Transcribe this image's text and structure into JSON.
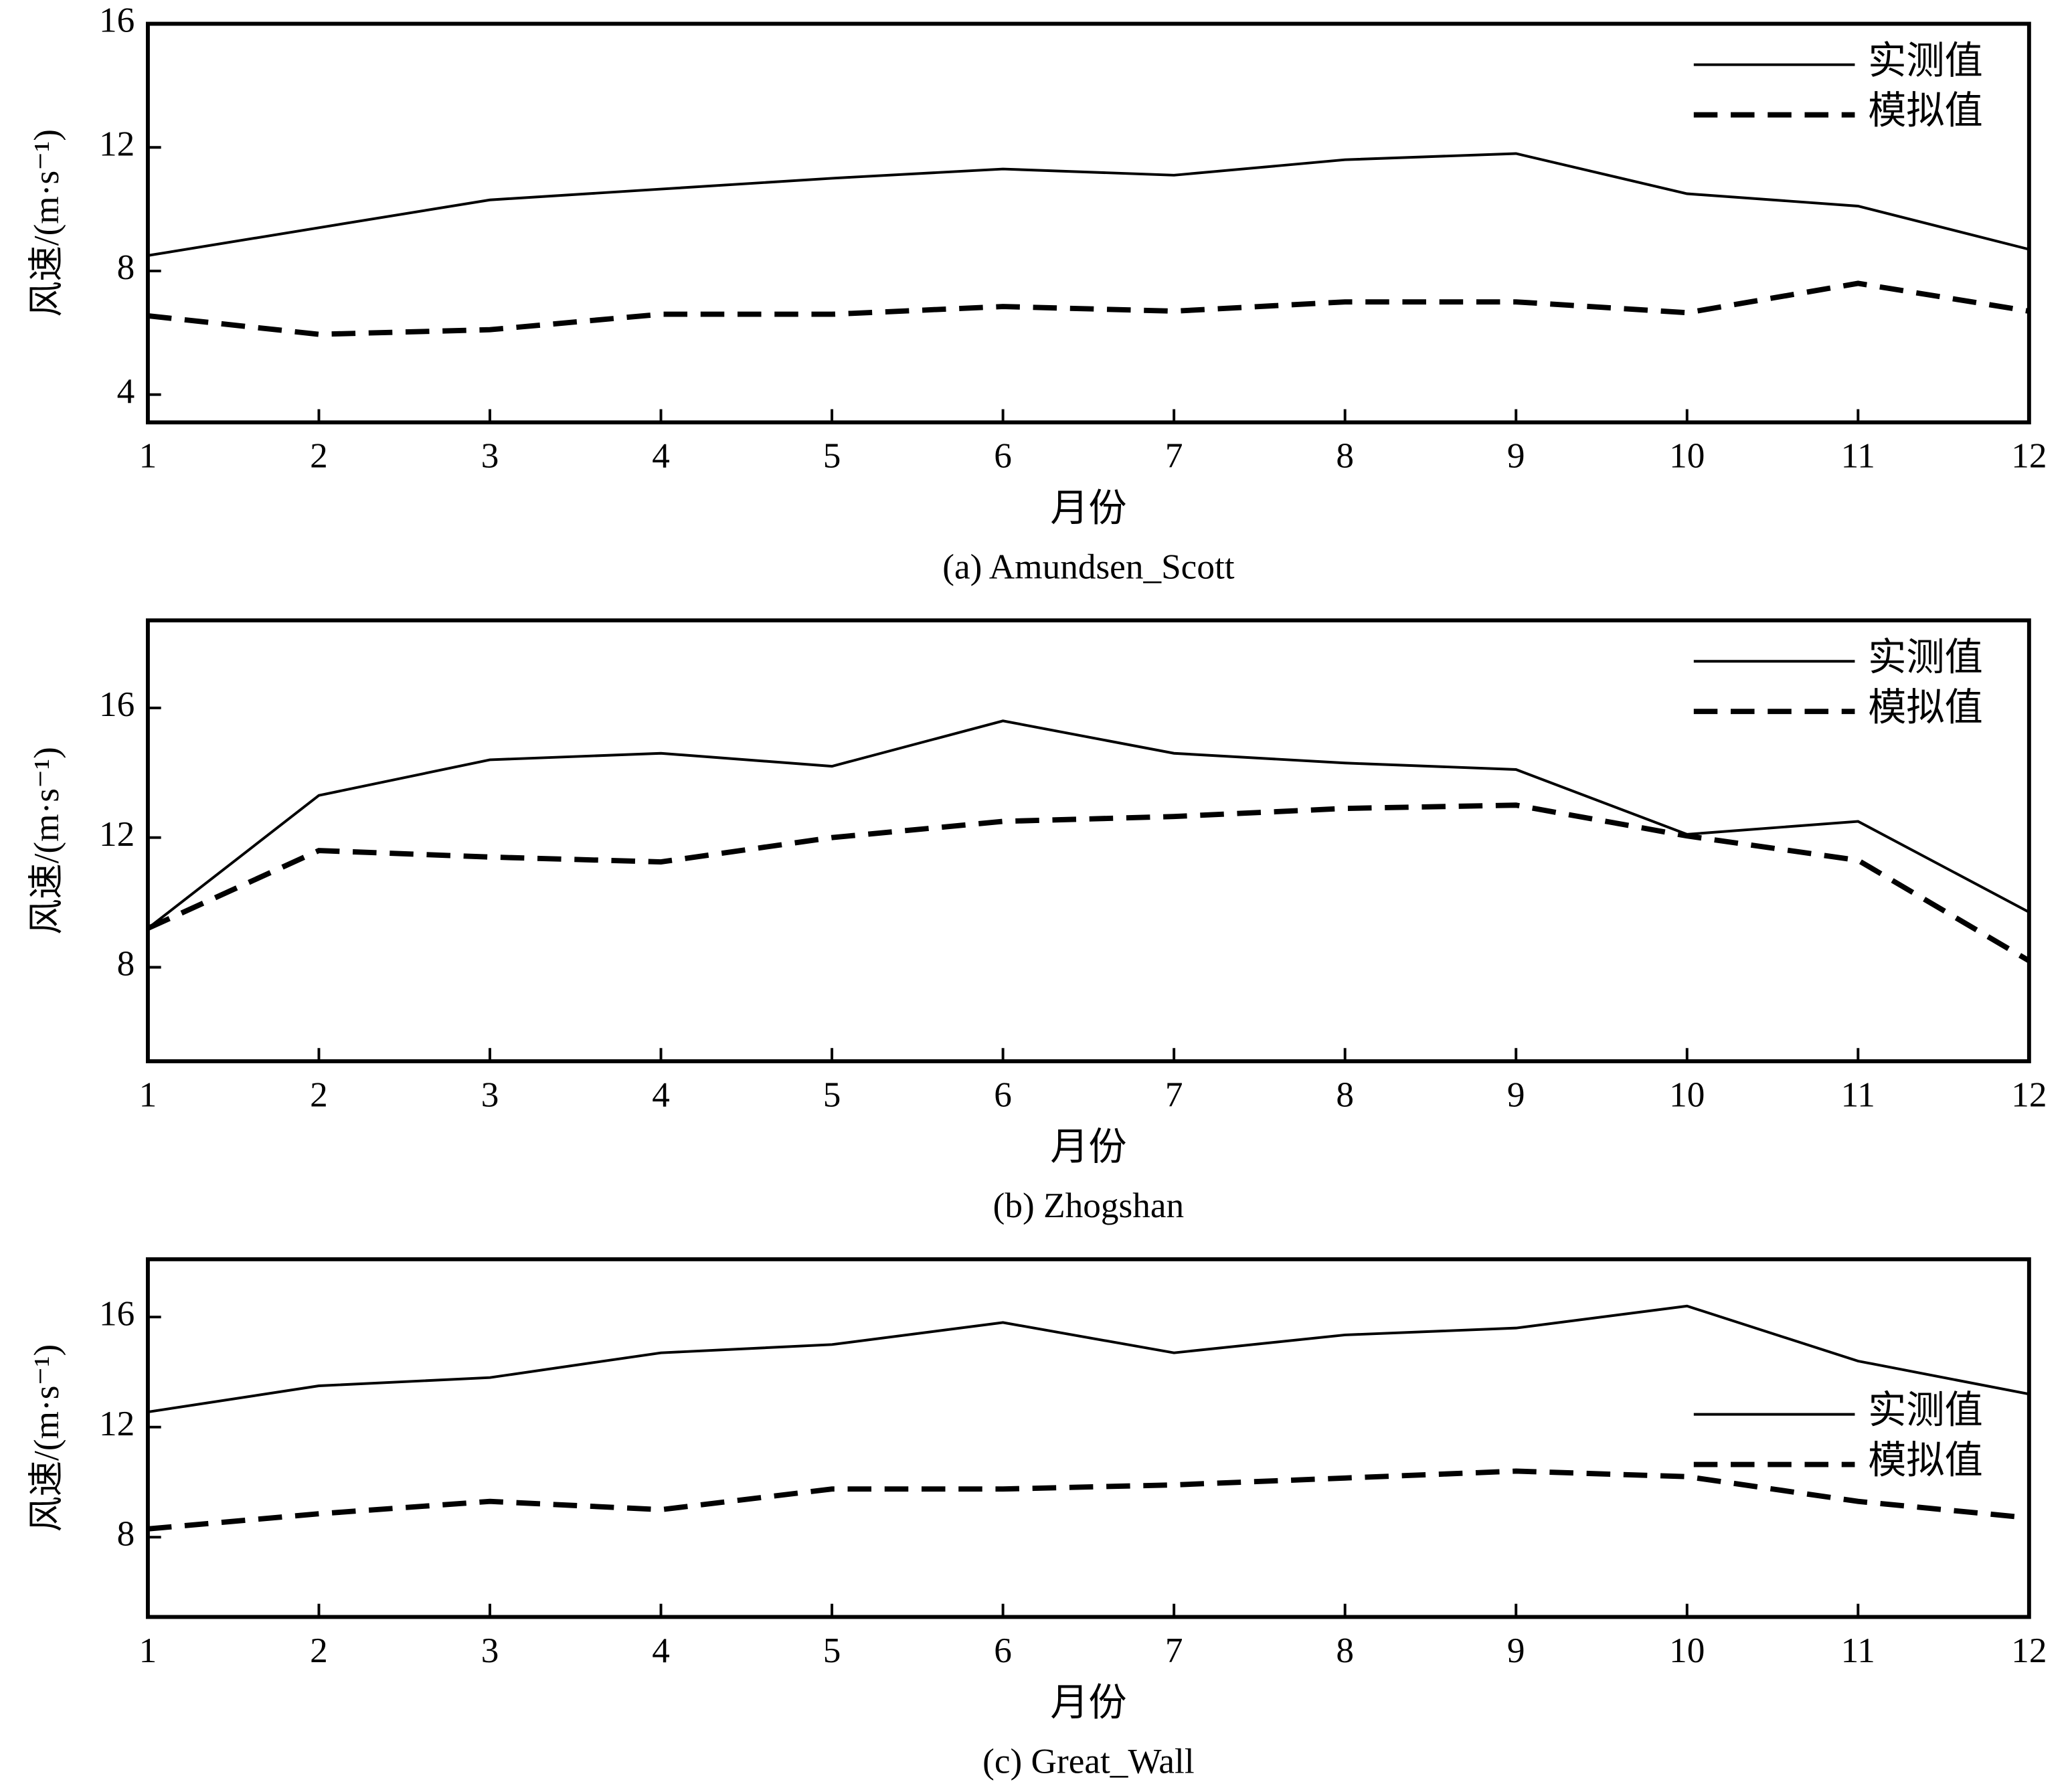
{
  "chart_data": [
    {
      "type": "line",
      "caption": "(a) Amundsen_Scott",
      "x_label": "月份",
      "y_label": "风速/(m·s⁻¹)",
      "x": [
        1,
        2,
        3,
        4,
        5,
        6,
        7,
        8,
        9,
        10,
        11,
        12
      ],
      "xlim": [
        1,
        12
      ],
      "xticks": [
        1,
        2,
        3,
        4,
        5,
        6,
        7,
        8,
        9,
        10,
        11,
        12
      ],
      "ylim": [
        3.1,
        16
      ],
      "yticks": [
        4,
        8,
        12,
        16
      ],
      "legend_loc": "upper right",
      "series": [
        {
          "name": "实测值",
          "color": "#000000",
          "line_style": "solid",
          "values": [
            8.5,
            9.4,
            10.3,
            10.65,
            11.0,
            11.3,
            11.1,
            11.6,
            11.8,
            10.5,
            10.1,
            8.7
          ]
        },
        {
          "name": "模拟值",
          "color": "#000000",
          "line_style": "dashed",
          "values": [
            6.55,
            5.95,
            6.1,
            6.6,
            6.6,
            6.85,
            6.7,
            7.0,
            7.0,
            6.65,
            7.6,
            6.7
          ]
        }
      ]
    },
    {
      "type": "line",
      "caption": "(b) Zhogshan",
      "x_label": "月份",
      "y_label": "风速/(m·s⁻¹)",
      "x": [
        1,
        2,
        3,
        4,
        5,
        6,
        7,
        8,
        9,
        10,
        11,
        12
      ],
      "xlim": [
        1,
        12
      ],
      "xticks": [
        1,
        2,
        3,
        4,
        5,
        6,
        7,
        8,
        9,
        10,
        11,
        12
      ],
      "ylim": [
        5.1,
        18.7
      ],
      "yticks": [
        8,
        12,
        16
      ],
      "legend_loc": "upper right",
      "series": [
        {
          "name": "实测值",
          "color": "#000000",
          "line_style": "solid",
          "values": [
            9.2,
            13.3,
            14.4,
            14.6,
            14.2,
            15.6,
            14.6,
            14.3,
            14.1,
            12.1,
            12.5,
            9.7
          ]
        },
        {
          "name": "模拟值",
          "color": "#000000",
          "line_style": "dashed",
          "values": [
            9.2,
            11.6,
            11.4,
            11.25,
            12.0,
            12.5,
            12.65,
            12.9,
            13.0,
            12.05,
            11.3,
            8.2
          ]
        }
      ]
    },
    {
      "type": "line",
      "caption": "(c) Great_Wall",
      "x_label": "月份",
      "y_label": "风速/(m·s⁻¹)",
      "x": [
        1,
        2,
        3,
        4,
        5,
        6,
        7,
        8,
        9,
        10,
        11,
        12
      ],
      "xlim": [
        1,
        12
      ],
      "xticks": [
        1,
        2,
        3,
        4,
        5,
        6,
        7,
        8,
        9,
        10,
        11,
        12
      ],
      "ylim": [
        5.1,
        18.1
      ],
      "yticks": [
        8,
        12,
        16
      ],
      "legend_loc": "center right",
      "series": [
        {
          "name": "实测值",
          "color": "#000000",
          "line_style": "solid",
          "values": [
            12.55,
            13.5,
            13.8,
            14.7,
            15.0,
            15.8,
            14.7,
            15.35,
            15.6,
            16.4,
            14.4,
            13.2
          ]
        },
        {
          "name": "模拟值",
          "color": "#000000",
          "line_style": "dashed",
          "values": [
            8.3,
            8.85,
            9.3,
            9.0,
            9.75,
            9.75,
            9.9,
            10.15,
            10.4,
            10.2,
            9.3,
            8.7
          ]
        }
      ]
    }
  ]
}
